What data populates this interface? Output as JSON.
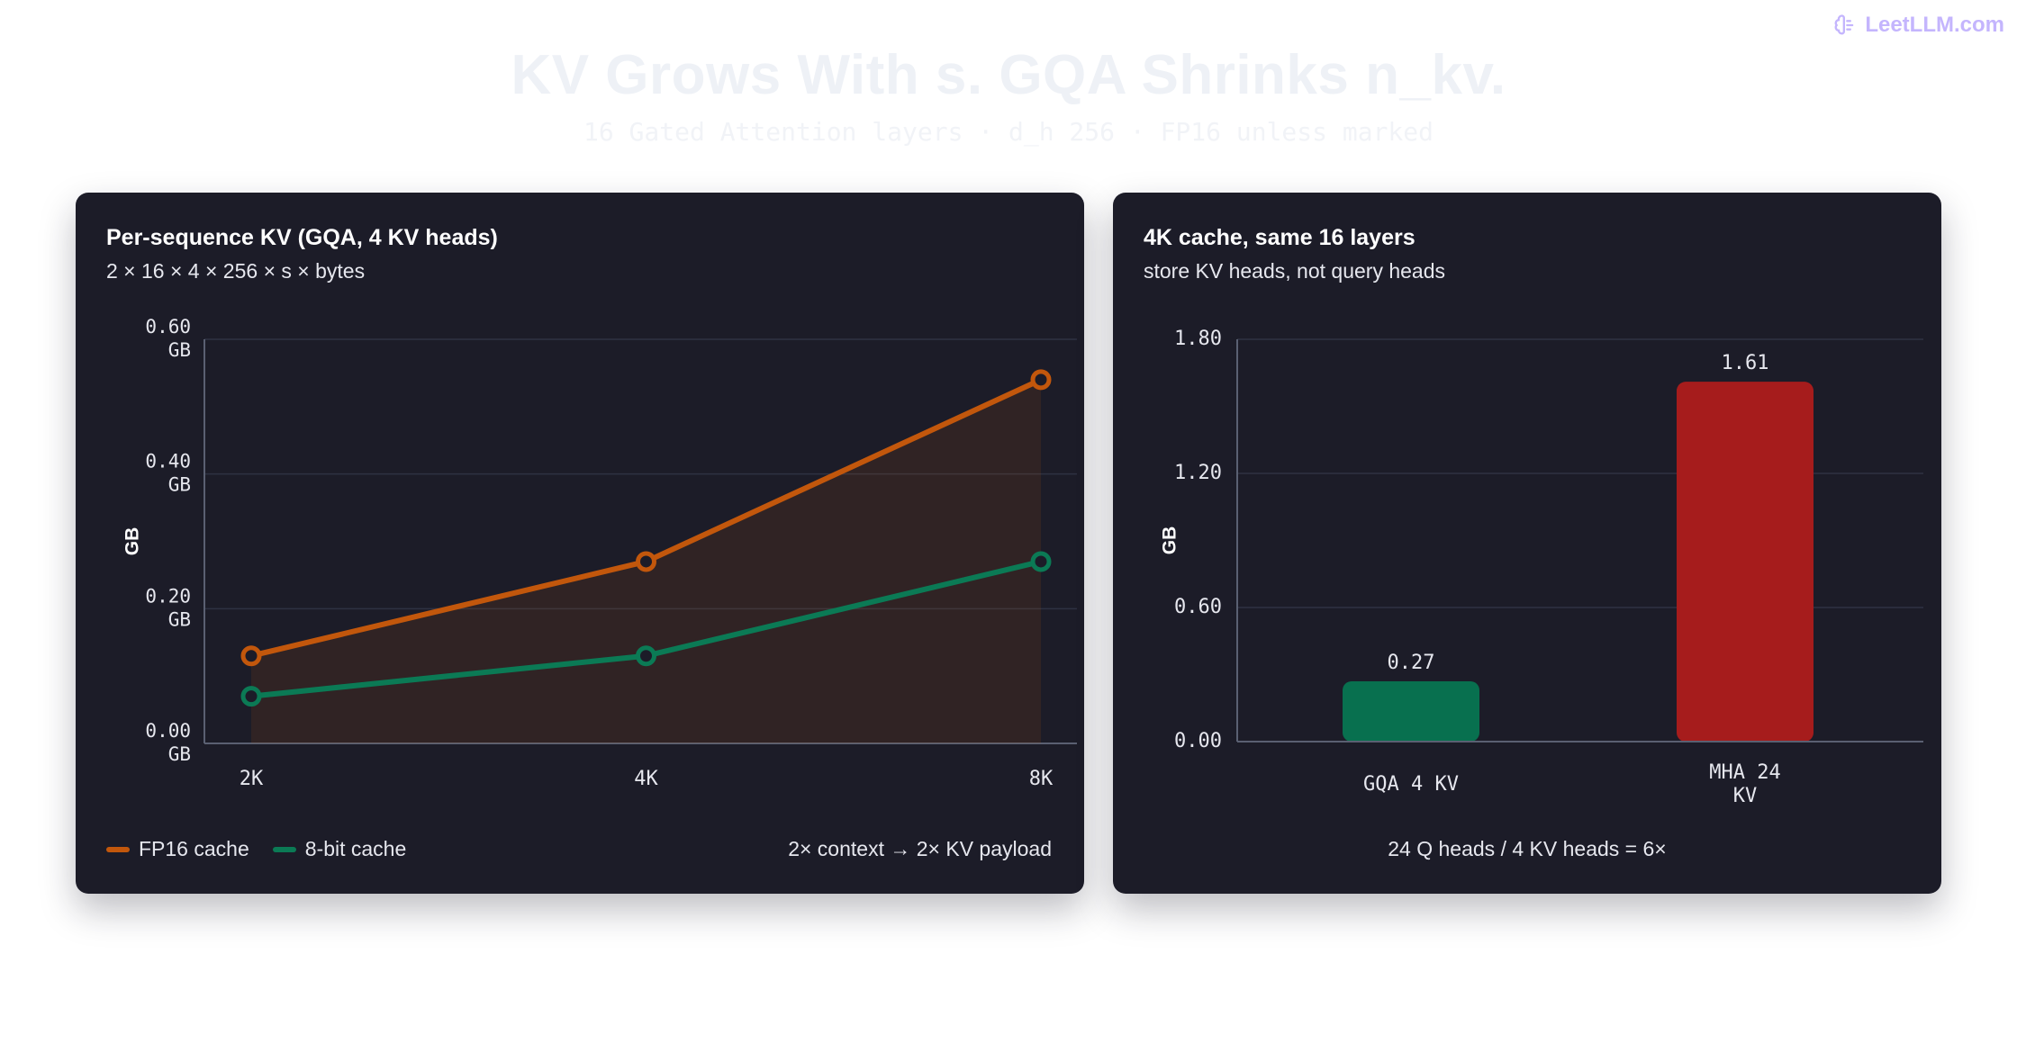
{
  "brand": {
    "text": "LeetLLM.com",
    "icon": "brain-icon"
  },
  "page": {
    "title": "KV Grows With s. GQA Shrinks n_kv.",
    "subtitle": "16 Gated Attention layers · d_h 256 · FP16 unless marked"
  },
  "colors": {
    "fp16": "#c2570c",
    "int8": "#0b7a55",
    "gqa_bar": "#08704f",
    "mha_bar": "#a61c1c",
    "axis": "#5a6072",
    "grid": "#2e3142",
    "text": "#e6e7ee"
  },
  "left_panel": {
    "title": "Per-sequence KV (GQA, 4 KV heads)",
    "subtitle": "2 × 16 × 4 × 256 × s × bytes",
    "footnote": "2× context → 2× KV payload",
    "legend": [
      {
        "label": "FP16 cache",
        "color": "#c2570c"
      },
      {
        "label": "8-bit cache",
        "color": "#0b7a55"
      }
    ]
  },
  "right_panel": {
    "title": "4K cache, same 16 layers",
    "subtitle": "store KV heads, not query heads",
    "footnote": "24 Q heads / 4 KV heads = 6×"
  },
  "chart_data": [
    {
      "type": "line",
      "title": "Per-sequence KV (GQA, 4 KV heads)",
      "categories": [
        "2K",
        "4K",
        "8K"
      ],
      "series": [
        {
          "name": "FP16 cache",
          "values": [
            0.13,
            0.27,
            0.54
          ]
        },
        {
          "name": "8-bit cache",
          "values": [
            0.07,
            0.13,
            0.27
          ]
        }
      ],
      "ylabel": "GB",
      "ylim": [
        0,
        0.6
      ],
      "yticks": [
        "0.00\nGB",
        "0.20\nGB",
        "0.40\nGB",
        "0.60\nGB"
      ],
      "ytick_values": [
        0,
        0.2,
        0.4,
        0.6
      ],
      "grid": true,
      "legend": "bottom-left"
    },
    {
      "type": "bar",
      "title": "4K cache, same 16 layers",
      "categories": [
        "GQA 4 KV",
        "MHA 24\nKV"
      ],
      "values": [
        0.27,
        1.61
      ],
      "value_labels": [
        "0.27",
        "1.61"
      ],
      "ylabel": "GB",
      "ylim": [
        0,
        1.8
      ],
      "yticks": [
        "0.00",
        "0.60",
        "1.20",
        "1.80"
      ],
      "ytick_values": [
        0,
        0.6,
        1.2,
        1.8
      ],
      "grid": true
    }
  ]
}
